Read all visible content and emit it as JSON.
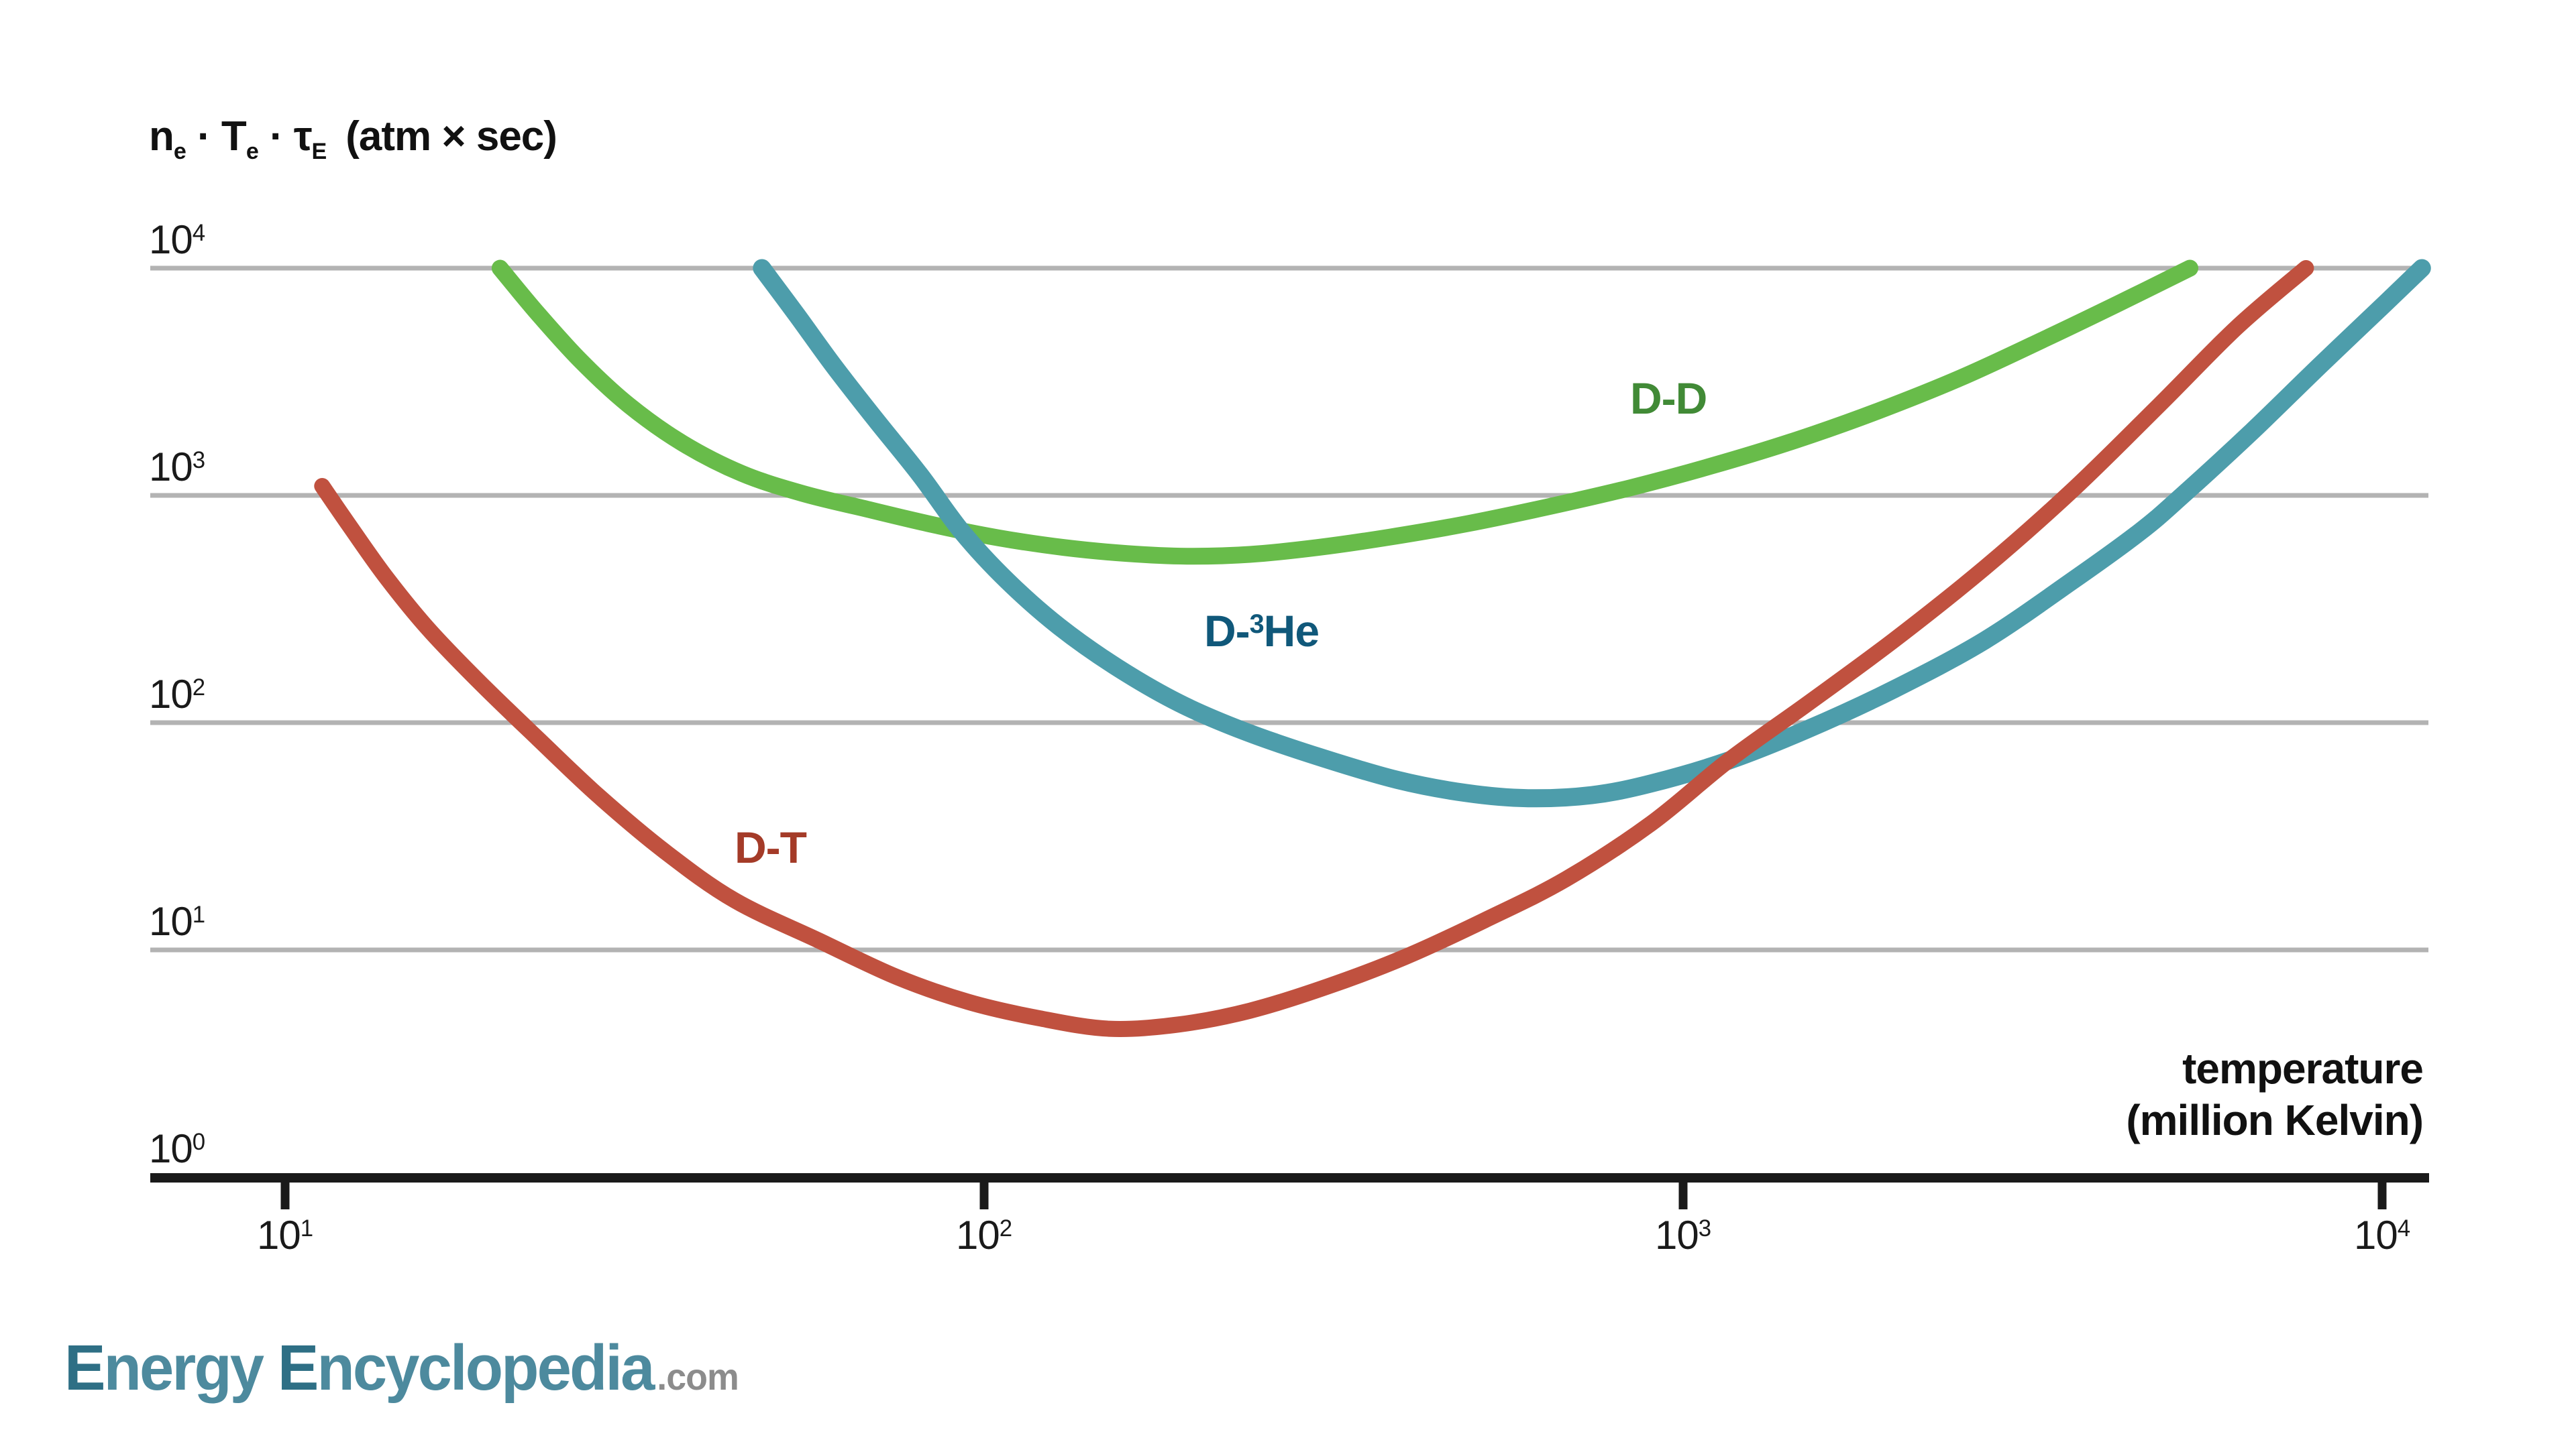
{
  "chart_data": {
    "type": "line",
    "title": "",
    "xlabel": "temperature (million Kelvin)",
    "ylabel": "ne · Te · tauE (atm × sec)",
    "x_scale": "log",
    "y_scale": "log",
    "xlim": [
      6.3,
      11900
    ],
    "ylim": [
      1,
      10000
    ],
    "x_tick_values": [
      10,
      100,
      1000,
      10000
    ],
    "y_tick_values": [
      1,
      10,
      100,
      1000,
      10000
    ],
    "grid": "horizontal-only",
    "legend_position": "labels-on-curves",
    "series": [
      {
        "name": "D-D",
        "color": "#68bc4a",
        "label_color": "#418a36",
        "points": [
          [
            20.3,
            10000
          ],
          [
            23,
            6300
          ],
          [
            26.5,
            3900
          ],
          [
            31,
            2500
          ],
          [
            37,
            1700
          ],
          [
            45,
            1250
          ],
          [
            55,
            1020
          ],
          [
            68,
            870
          ],
          [
            85,
            740
          ],
          [
            105,
            650
          ],
          [
            130,
            590
          ],
          [
            160,
            555
          ],
          [
            195,
            540
          ],
          [
            240,
            550
          ],
          [
            300,
            590
          ],
          [
            380,
            655
          ],
          [
            490,
            750
          ],
          [
            640,
            890
          ],
          [
            840,
            1080
          ],
          [
            1100,
            1350
          ],
          [
            1450,
            1750
          ],
          [
            1900,
            2350
          ],
          [
            2500,
            3300
          ],
          [
            3300,
            4900
          ],
          [
            4200,
            7000
          ],
          [
            5310,
            10000
          ]
        ]
      },
      {
        "name": "D-3He",
        "color": "#4d9dab",
        "label_color": "#10587a",
        "points": [
          [
            48.1,
            10000
          ],
          [
            54,
            6200
          ],
          [
            61,
            3700
          ],
          [
            70,
            2150
          ],
          [
            81,
            1230
          ],
          [
            93,
            690
          ],
          [
            108,
            420
          ],
          [
            128,
            265
          ],
          [
            155,
            175
          ],
          [
            190,
            122
          ],
          [
            235,
            92
          ],
          [
            300,
            71
          ],
          [
            390,
            56
          ],
          [
            490,
            49
          ],
          [
            600,
            46.5
          ],
          [
            740,
            48
          ],
          [
            900,
            54
          ],
          [
            1160,
            68
          ],
          [
            1500,
            93
          ],
          [
            2000,
            140
          ],
          [
            2700,
            230
          ],
          [
            3600,
            420
          ],
          [
            4500,
            690
          ],
          [
            5180,
            1000
          ],
          [
            6500,
            1900
          ],
          [
            8200,
            3800
          ],
          [
            10200,
            7200
          ],
          [
            11400,
            10000
          ]
        ]
      },
      {
        "name": "D-T",
        "color": "#c0513f",
        "label_color": "#a43b28",
        "points": [
          [
            11.3,
            1100
          ],
          [
            12.5,
            700
          ],
          [
            14,
            430
          ],
          [
            16,
            260
          ],
          [
            19,
            150
          ],
          [
            23,
            85
          ],
          [
            28,
            48
          ],
          [
            35,
            27
          ],
          [
            44,
            16.5
          ],
          [
            58,
            11
          ],
          [
            75,
            7.6
          ],
          [
            95,
            5.9
          ],
          [
            120,
            5
          ],
          [
            151,
            4.5
          ],
          [
            190,
            4.7
          ],
          [
            240,
            5.4
          ],
          [
            310,
            6.9
          ],
          [
            400,
            9.3
          ],
          [
            520,
            13.5
          ],
          [
            680,
            20.5
          ],
          [
            900,
            36
          ],
          [
            1160,
            68
          ],
          [
            1500,
            120
          ],
          [
            2000,
            230
          ],
          [
            2700,
            480
          ],
          [
            3600,
            1050
          ],
          [
            4800,
            2500
          ],
          [
            6200,
            5500
          ],
          [
            7780,
            10000
          ]
        ]
      }
    ]
  },
  "y_axis": {
    "title": {
      "n1": "n",
      "s1": "e",
      "n2": " · T",
      "s2": "e",
      "n3": " · τ",
      "s3": "E",
      "unit": "(atm × sec)"
    },
    "ticks": [
      {
        "base": "10",
        "exp": "4"
      },
      {
        "base": "10",
        "exp": "3"
      },
      {
        "base": "10",
        "exp": "2"
      },
      {
        "base": "10",
        "exp": "1"
      },
      {
        "base": "10",
        "exp": "0"
      }
    ]
  },
  "x_axis": {
    "title_line1": "temperature",
    "title_line2": "(million Kelvin)",
    "ticks": [
      {
        "base": "10",
        "exp": "1"
      },
      {
        "base": "10",
        "exp": "2"
      },
      {
        "base": "10",
        "exp": "3"
      },
      {
        "base": "10",
        "exp": "4"
      }
    ]
  },
  "curve_labels": {
    "dd": "D-D",
    "dhe3_pre": "D-",
    "dhe3_sup": "3",
    "dhe3_post": "He",
    "dt": "D-T"
  },
  "branding": {
    "cap1": "E",
    "word1": "nergy",
    "cap2": "E",
    "word2": "ncyclopedia",
    "tld": ".com"
  },
  "colors": {
    "gridline": "#b3b3b3",
    "axis": "#1a1a1a",
    "dd_curve": "#68bc4a",
    "dhe3_curve": "#4d9dab",
    "dt_curve": "#c0513f",
    "dd_label": "#418a36",
    "dhe3_label": "#10587a",
    "dt_label": "#a43b28",
    "logo_teal": "#4d8a9e",
    "logo_dark_teal": "#2e6f85",
    "logo_gray": "#8c8c8c"
  }
}
